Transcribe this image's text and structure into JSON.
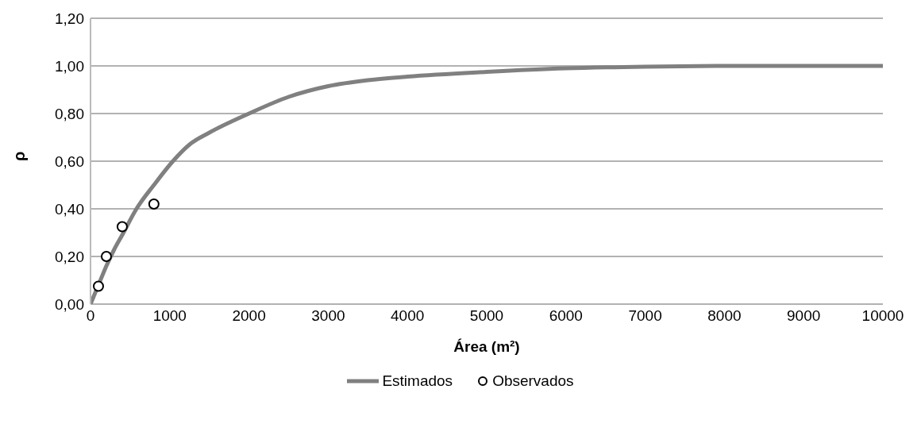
{
  "chart_data": {
    "type": "line",
    "xlabel": "Área (m²)",
    "ylabel": "ρ",
    "xlim": [
      0,
      10000
    ],
    "xticks": [
      0,
      1000,
      2000,
      3000,
      4000,
      5000,
      6000,
      7000,
      8000,
      9000,
      10000
    ],
    "ylim": [
      0,
      1.2
    ],
    "yticks": [
      {
        "value": 0,
        "label": "0,00"
      },
      {
        "value": 0.2,
        "label": "0,20"
      },
      {
        "value": 0.4,
        "label": "0,40"
      },
      {
        "value": 0.6,
        "label": "0,60"
      },
      {
        "value": 0.8,
        "label": "0,80"
      },
      {
        "value": 1,
        "label": "1,00"
      },
      {
        "value": 1.2,
        "label": "1,20"
      }
    ],
    "grid": "y",
    "legend": "bottom",
    "series": [
      {
        "name": "Estimados",
        "color": "#808080",
        "marker": "none",
        "x": [
          0,
          100,
          200,
          300,
          400,
          580,
          800,
          1040,
          1250,
          1500,
          2000,
          2500,
          3000,
          3500,
          4000,
          5000,
          6000,
          7000,
          8000,
          9000,
          10000
        ],
        "values": [
          0,
          0.08,
          0.16,
          0.23,
          0.29,
          0.4,
          0.5,
          0.6,
          0.67,
          0.72,
          0.8,
          0.87,
          0.915,
          0.94,
          0.955,
          0.975,
          0.99,
          0.997,
          1,
          1,
          1
        ]
      },
      {
        "name": "Observados",
        "type": "scatter",
        "color": "#000000",
        "marker": "circle",
        "x": [
          100,
          200,
          400,
          800
        ],
        "values": [
          0.075,
          0.2,
          0.325,
          0.42
        ]
      }
    ]
  }
}
